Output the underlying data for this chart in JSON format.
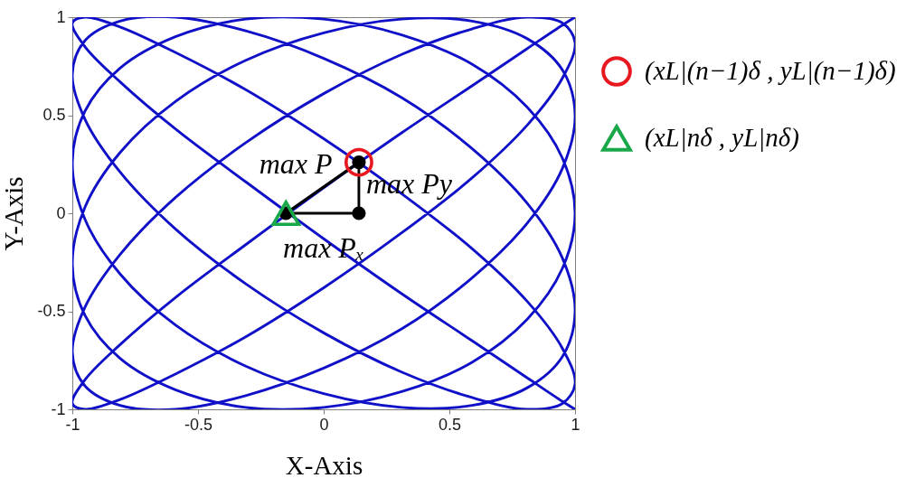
{
  "chart_data": {
    "type": "line",
    "xlabel": "X-Axis",
    "ylabel": "Y-Axis",
    "xlim": [
      -1,
      1
    ],
    "ylim": [
      -1,
      1
    ],
    "xticks": [
      -1,
      -0.5,
      0,
      0.5,
      1
    ],
    "yticks": [
      -1,
      -0.5,
      0,
      0.5,
      1
    ],
    "legend": "right",
    "series": [
      {
        "color": "#1010c8",
        "x": [
          1,
          0.95,
          0.81,
          0.59,
          0.31,
          0,
          -0.31,
          -0.59,
          -0.81,
          -0.95,
          -1,
          -0.95,
          -0.81,
          -0.59,
          -0.31,
          0,
          0.31,
          0.59,
          0.81,
          0.95,
          1,
          0.95,
          0.81,
          0.59,
          0.31,
          0,
          -0.31,
          -0.59,
          -0.81,
          -0.95,
          -1,
          -0.95,
          -0.81,
          -0.59,
          -0.31,
          0,
          0.31,
          0.59,
          0.81,
          0.95,
          1,
          0.95,
          0.81,
          0.59,
          0.31,
          0,
          -0.31,
          -0.59,
          -0.81,
          -0.95,
          -1,
          -0.95,
          -0.81,
          -0.59,
          -0.31,
          0,
          0.31,
          0.59,
          0.81,
          0.95,
          1,
          0.95,
          0.81,
          0.59,
          0.31,
          0,
          -0.31,
          -0.59,
          -0.81,
          -0.95,
          -1,
          -0.95,
          -0.81,
          -0.59,
          -0.31,
          0,
          0.31,
          0.59,
          0.81,
          0.95,
          1,
          0.95,
          0.81,
          0.59,
          0.31,
          0,
          -0.31,
          -0.59,
          -0.81,
          -0.95,
          -1,
          -0.95,
          -0.81,
          -0.59,
          -0.31,
          0,
          0.31,
          0.59,
          0.81,
          0.95,
          1,
          0.95,
          0.81,
          0.59,
          0.31,
          0,
          -0.31,
          -0.59,
          -0.81,
          -0.95,
          -1,
          -0.95,
          -0.81,
          -0.59,
          -0.31,
          0,
          0.31,
          0.59,
          0.81,
          0.95,
          1
        ],
        "values": [
          1,
          0.96,
          0.84,
          0.65,
          0.41,
          0.13,
          -0.16,
          -0.43,
          -0.67,
          -0.85,
          -0.97,
          -1,
          -0.95,
          -0.82,
          -0.63,
          -0.38,
          -0.1,
          0.18,
          0.45,
          0.69,
          0.87,
          0.97,
          1,
          0.94,
          0.81,
          0.61,
          0.36,
          0.08,
          -0.21,
          -0.48,
          -0.71,
          -0.88,
          -0.98,
          -1,
          -0.93,
          -0.79,
          -0.59,
          -0.33,
          -0.05,
          0.23,
          0.5,
          0.73,
          0.89,
          0.98,
          0.99,
          0.92,
          0.78,
          0.57,
          0.31,
          0.03,
          -0.26,
          -0.52,
          -0.74,
          -0.9,
          -0.99,
          -0.99,
          -0.91,
          -0.76,
          -0.54,
          -0.28,
          0,
          0.28,
          0.54,
          0.76,
          0.91,
          0.99,
          0.99,
          0.9,
          0.74,
          0.52,
          0.26,
          -0.03,
          -0.31,
          -0.57,
          -0.78,
          -0.92,
          -0.99,
          -0.98,
          -0.89,
          -0.73,
          -0.5,
          -0.23,
          0.05,
          0.33,
          0.59,
          0.79,
          0.93,
          1,
          0.98,
          0.88,
          0.71,
          0.48,
          0.21,
          -0.08,
          -0.36,
          -0.61,
          -0.81,
          -0.94,
          -1,
          -0.97,
          -0.87,
          -0.69,
          -0.45,
          -0.18,
          0.1,
          0.38,
          0.63,
          0.82,
          0.95,
          1,
          0.97,
          0.85,
          0.67,
          0.43,
          0.16,
          -0.13,
          -0.41,
          -0.65,
          -0.84,
          -0.96,
          -1
        ]
      },
      {
        "type": "line",
        "color": "#000000",
        "marker": "circle",
        "x": [
          0.14,
          -0.15,
          0.14
        ],
        "values": [
          0.26,
          0,
          0
        ]
      },
      {
        "type": "line",
        "color": "#000000",
        "x": [
          0.14,
          0.14
        ],
        "values": [
          0,
          0.26
        ]
      },
      {
        "type": "scatter",
        "name": "(xL|(n−1)δ , yL|(n−1)δ)",
        "color": "#e81820",
        "marker": "circle",
        "x": [
          0.14
        ],
        "values": [
          0.26
        ]
      },
      {
        "type": "scatter",
        "name": "(xL|nδ , yL|nδ)",
        "color": "#18a84a",
        "marker": "triangle",
        "x": [
          -0.15
        ],
        "values": [
          0
        ]
      }
    ],
    "annotations": [
      {
        "text": "max P",
        "x": 0.02,
        "y": 0.15
      },
      {
        "text": "max Py",
        "x": 0.14,
        "y": 0.14
      },
      {
        "text": "max Pₓ",
        "x": 0,
        "y": 0
      }
    ]
  }
}
